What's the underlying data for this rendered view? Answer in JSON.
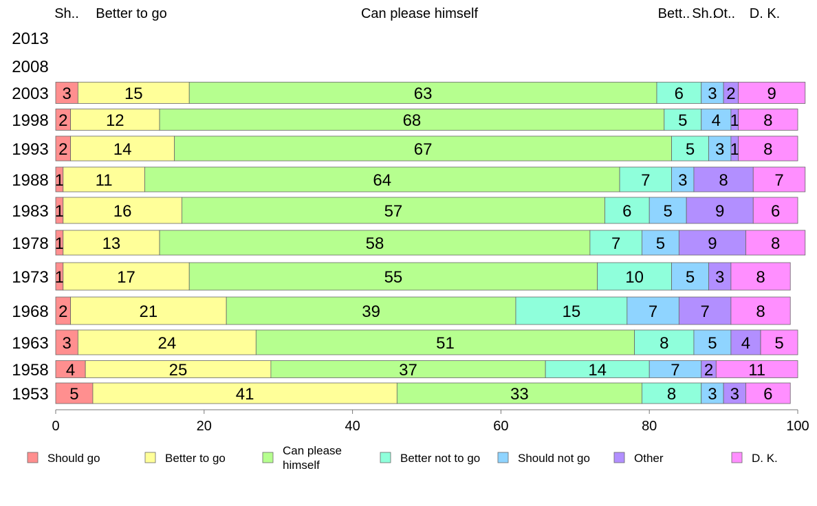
{
  "chart_data": {
    "type": "bar",
    "orientation": "horizontal",
    "stacked": true,
    "categories": [
      "2013",
      "2008",
      "2003",
      "1998",
      "1993",
      "1988",
      "1983",
      "1978",
      "1973",
      "1968",
      "1963",
      "1958",
      "1953"
    ],
    "series": [
      {
        "name": "Should go",
        "color": "#ff8f8f",
        "values": [
          null,
          null,
          3,
          2,
          2,
          1,
          1,
          1,
          1,
          2,
          3,
          4,
          5
        ]
      },
      {
        "name": "Better to go",
        "color": "#ffff99",
        "values": [
          null,
          null,
          15,
          12,
          14,
          11,
          16,
          13,
          17,
          21,
          24,
          25,
          41
        ]
      },
      {
        "name": "Can please himself",
        "color": "#b6ff8f",
        "values": [
          null,
          null,
          63,
          68,
          67,
          64,
          57,
          58,
          55,
          39,
          51,
          37,
          33
        ]
      },
      {
        "name": "Better not to go",
        "color": "#8fffdb",
        "values": [
          null,
          null,
          6,
          5,
          5,
          7,
          6,
          7,
          10,
          15,
          8,
          14,
          8
        ]
      },
      {
        "name": "Should not go",
        "color": "#8fd4ff",
        "values": [
          null,
          null,
          3,
          4,
          3,
          3,
          5,
          5,
          5,
          7,
          5,
          7,
          3
        ]
      },
      {
        "name": "Other",
        "color": "#b28fff",
        "values": [
          null,
          null,
          2,
          1,
          1,
          8,
          9,
          9,
          3,
          7,
          4,
          2,
          3
        ]
      },
      {
        "name": "D. K.",
        "color": "#ff8fff",
        "values": [
          null,
          null,
          9,
          8,
          8,
          7,
          6,
          8,
          8,
          8,
          5,
          11,
          6
        ]
      }
    ],
    "header_labels": [
      "Sh..",
      "Better to go",
      "Can please himself",
      "Bett..",
      "Sh..",
      "Ot..",
      "D. K."
    ],
    "xlim": [
      0,
      100
    ],
    "xticks": [
      "0",
      "20",
      "40",
      "60",
      "80",
      "100"
    ],
    "legend_labels": [
      "Should go",
      "Better to go",
      "Can please\nhimself",
      "Better not to go",
      "Should not go",
      "Other",
      "D. K."
    ],
    "legend_position": "bottom",
    "grid": false
  }
}
